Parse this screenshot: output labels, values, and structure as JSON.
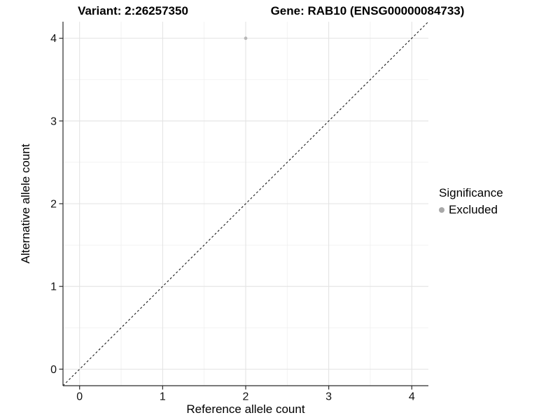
{
  "chart_data": {
    "type": "scatter",
    "title_left": "Variant: 2:26257350",
    "title_right": "Gene: RAB10 (ENSG00000084733)",
    "xlabel": "Reference allele count",
    "ylabel": "Alternative allele count",
    "xlim": [
      -0.2,
      4.2
    ],
    "ylim": [
      -0.2,
      4.2
    ],
    "xticks": [
      0,
      1,
      2,
      3,
      4
    ],
    "yticks": [
      0,
      1,
      2,
      3,
      4
    ],
    "x_minor_breaks": [
      0.5,
      1.5,
      2.5,
      3.5
    ],
    "y_minor_breaks": [
      0.5,
      1.5,
      2.5,
      3.5
    ],
    "grid": true,
    "series": [
      {
        "name": "Excluded",
        "color": "#b8b8b8",
        "points": [
          {
            "x": 2,
            "y": 4
          }
        ]
      }
    ],
    "reference_line": {
      "type": "identity",
      "x1": -0.2,
      "y1": -0.2,
      "x2": 4.2,
      "y2": 4.2,
      "style": "dashed",
      "color": "#1a1a1a"
    },
    "legend": {
      "title": "Significance",
      "position": "right",
      "entries": [
        {
          "label": "Excluded",
          "color": "#a8a8a8"
        }
      ]
    }
  },
  "colors": {
    "background": "#ffffff",
    "grid_major": "#e3e3e3",
    "grid_minor": "#efefef",
    "axis_line": "#2b2b2b",
    "tick_label": "#111111"
  }
}
